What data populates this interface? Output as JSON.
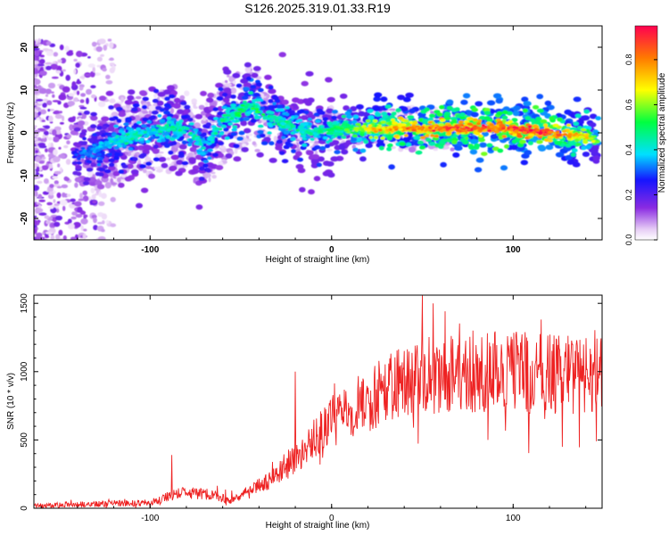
{
  "title": "S126.2025.319.01.33.R19",
  "chart_data": [
    {
      "type": "heatmap",
      "title": "S126.2025.319.01.33.R19",
      "xlabel": "Height of straight line (km)",
      "ylabel": "Frequency (Hz)",
      "xlim": [
        -164,
        149
      ],
      "ylim": [
        -25,
        25
      ],
      "xticks": [
        -100,
        0,
        100
      ],
      "yticks": [
        -20,
        -10,
        0,
        10,
        20
      ],
      "colorbar": {
        "label": "Normalized spectral amplitude",
        "range": [
          0,
          0.95
        ],
        "ticks": [
          0.0,
          0.2,
          0.4,
          0.6,
          0.8
        ]
      },
      "ridge": {
        "x": [
          -164,
          -140,
          -130,
          -120,
          -110,
          -100,
          -90,
          -80,
          -70,
          -60,
          -50,
          -45,
          -40,
          -35,
          -30,
          -20,
          -10,
          0,
          10,
          20,
          40,
          60,
          80,
          100,
          120,
          140,
          149
        ],
        "y": [
          -3,
          -5,
          -4,
          -2,
          -1,
          0,
          1,
          1,
          -4,
          3,
          5,
          7,
          5,
          4,
          3,
          1,
          0,
          1,
          1,
          1,
          1,
          1,
          1,
          1,
          0,
          -1,
          -2
        ],
        "peak_amplitude": [
          0.1,
          0.3,
          0.35,
          0.4,
          0.45,
          0.4,
          0.45,
          0.45,
          0.4,
          0.45,
          0.5,
          0.5,
          0.5,
          0.45,
          0.45,
          0.45,
          0.45,
          0.5,
          0.55,
          0.7,
          0.8,
          0.85,
          0.9,
          0.9,
          0.9,
          0.7,
          0.5
        ]
      }
    },
    {
      "type": "line",
      "xlabel": "Height of straight line (km)",
      "ylabel": "SNR (10 * v/v)",
      "xlim": [
        -164,
        149
      ],
      "ylim": [
        0,
        1560
      ],
      "xticks": [
        -100,
        0,
        100
      ],
      "yticks": [
        0,
        500,
        1000,
        1500
      ],
      "series": [
        {
          "name": "SNR",
          "color": "#ee2222",
          "trend_x": [
            -164,
            -100,
            -85,
            -70,
            -55,
            -40,
            -30,
            -20,
            -10,
            0,
            10,
            20,
            30,
            40,
            50,
            60,
            80,
            100,
            120,
            140,
            149
          ],
          "trend_y": [
            20,
            40,
            110,
            110,
            60,
            160,
            230,
            380,
            500,
            650,
            700,
            800,
            870,
            930,
            960,
            990,
            980,
            1000,
            980,
            980,
            980
          ],
          "spikes": [
            {
              "x": -88,
              "y": 390
            },
            {
              "x": -20,
              "y": 1000
            },
            {
              "x": 50,
              "y": 1560
            },
            {
              "x": 56,
              "y": 1500
            },
            {
              "x": 86,
              "y": 500
            },
            {
              "x": 127,
              "y": 450
            },
            {
              "x": 146,
              "y": 490
            }
          ]
        }
      ]
    }
  ]
}
